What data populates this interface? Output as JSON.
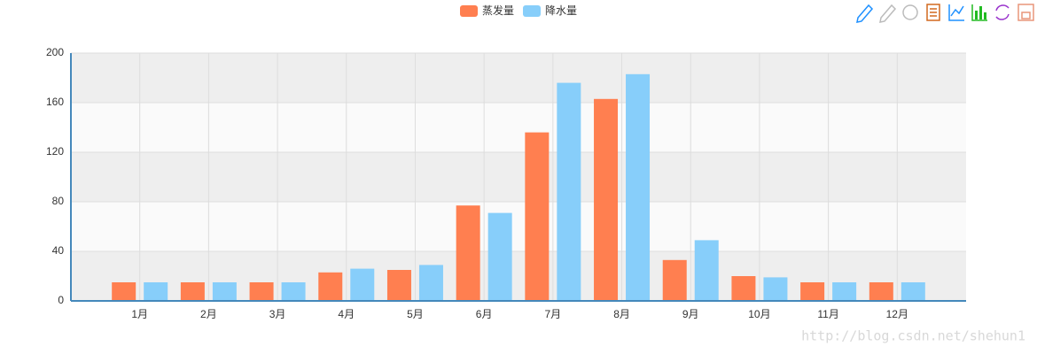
{
  "chart_data": {
    "type": "bar",
    "categories": [
      "1月",
      "2月",
      "3月",
      "4月",
      "5月",
      "6月",
      "7月",
      "8月",
      "9月",
      "10月",
      "11月",
      "12月"
    ],
    "series": [
      {
        "name": "蒸发量",
        "color": "#ff7f50",
        "values": [
          15,
          15,
          15,
          23,
          25,
          77,
          136,
          163,
          33,
          20,
          15,
          15
        ]
      },
      {
        "name": "降水量",
        "color": "#87cefa",
        "values": [
          15,
          15,
          15,
          26,
          29,
          71,
          176,
          183,
          49,
          19,
          15,
          15
        ]
      }
    ],
    "ylim": [
      0,
      200
    ],
    "yticks": [
      0,
      40,
      80,
      120,
      160,
      200
    ],
    "grid": true,
    "legend": "top",
    "watermark": "http://blog.csdn.net/shehun1"
  }
}
